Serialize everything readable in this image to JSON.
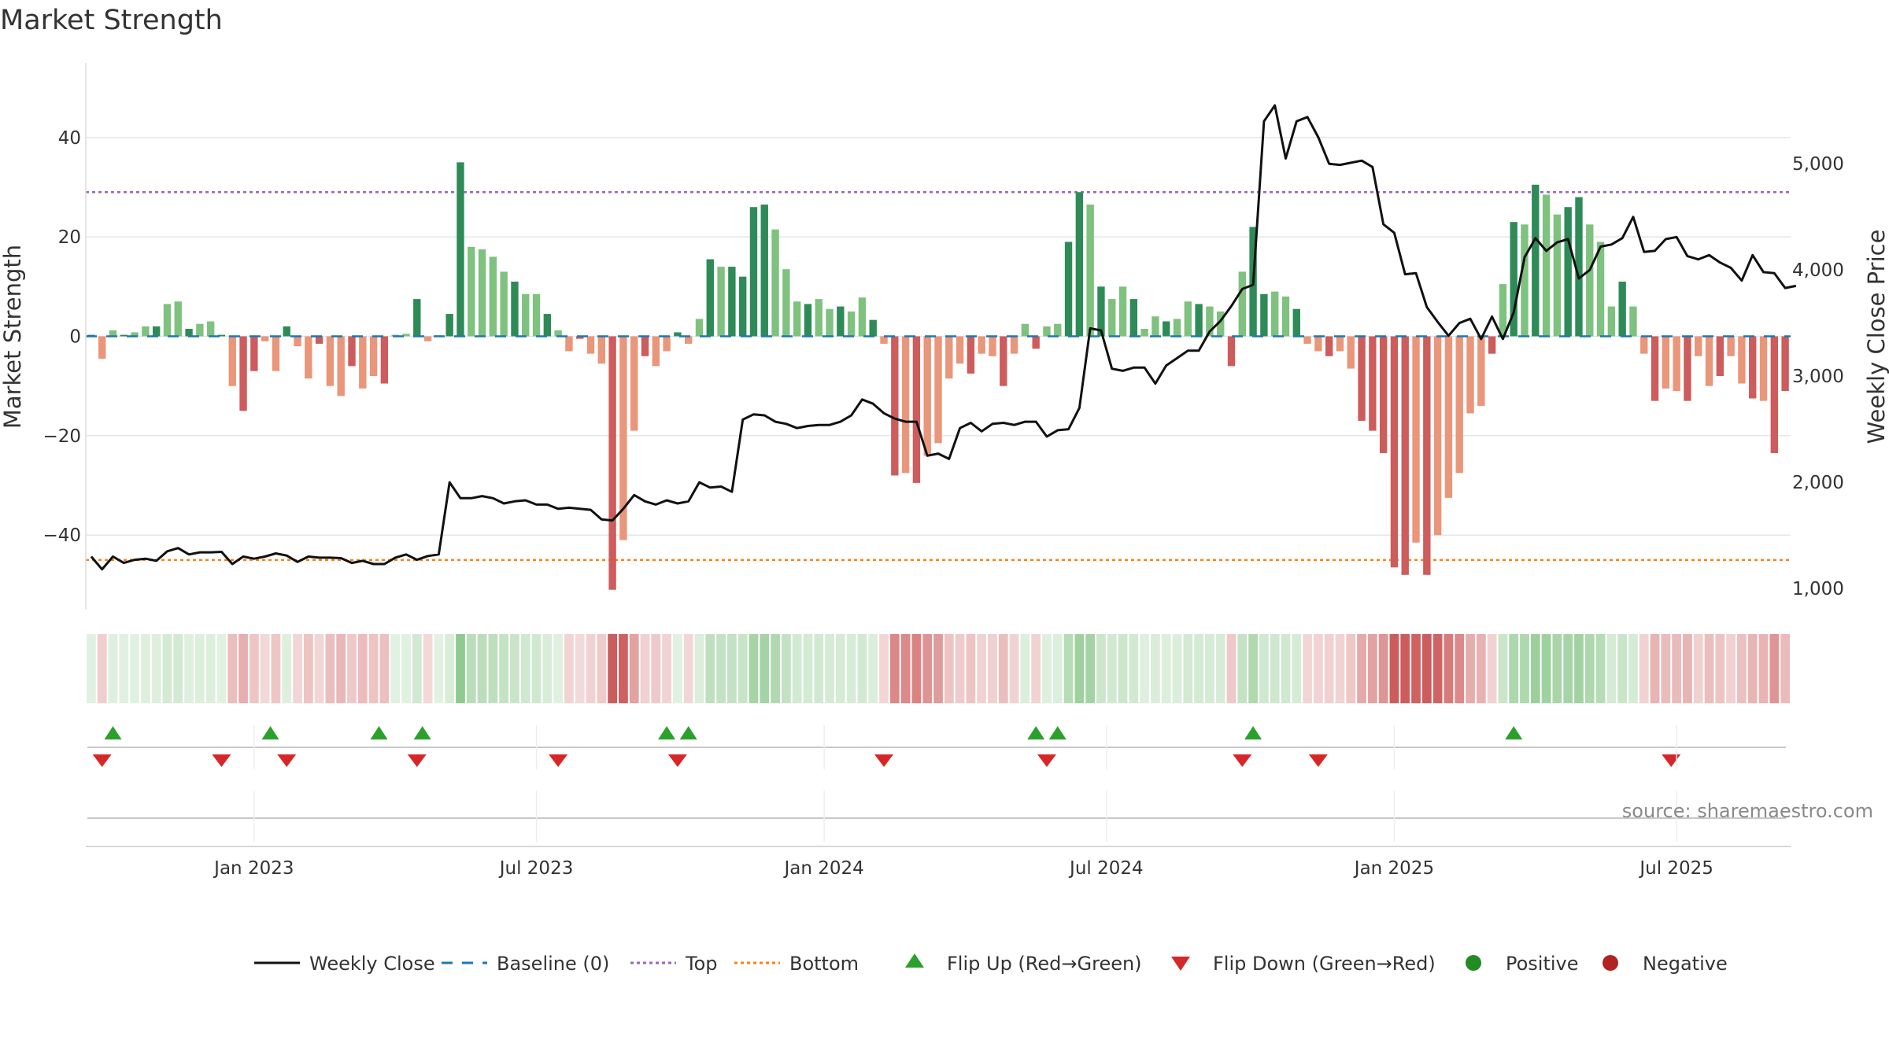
{
  "title": "Market Strength",
  "source": "source: sharemaestro.com",
  "colors": {
    "pos_dark": "#2e8b57",
    "pos_light": "#7fc17f",
    "neg_dark": "#cd5c5c",
    "neg_light": "#e9967a",
    "line": "#111111",
    "baseline": "#1f77b4",
    "top": "#9467bd",
    "bottom": "#ff7f0e",
    "flip_up": "#2ca02c",
    "flip_down": "#d62728",
    "positive": "#228b22",
    "negative": "#b22222",
    "grid": "#e6e6e6"
  },
  "chart_data": {
    "type": "bar",
    "title": "Market Strength",
    "ylabel": "Market Strength",
    "y2label": "Weekly Close Price",
    "ylim": [
      -55,
      55
    ],
    "y2lim": [
      800,
      5950
    ],
    "yticks": [
      40,
      20,
      0,
      -20,
      -40
    ],
    "y2ticks": [
      {
        "v": 5000,
        "label": "5,000"
      },
      {
        "v": 4000,
        "label": "4,000"
      },
      {
        "v": 3000,
        "label": "3,000"
      },
      {
        "v": 2000,
        "label": "2,000"
      },
      {
        "v": 1000,
        "label": "1,000"
      }
    ],
    "xticks": [
      {
        "label": "Jan 2023",
        "week": 15
      },
      {
        "label": "Jul 2023",
        "week": 41
      },
      {
        "label": "Jan 2024",
        "week": 67.5
      },
      {
        "label": "Jul 2024",
        "week": 93.5
      },
      {
        "label": "Jan 2025",
        "week": 120
      },
      {
        "label": "Jul 2025",
        "week": 146
      }
    ],
    "grid": true,
    "legend_position": "bottom",
    "top_level": 29,
    "bottom_level": -45,
    "strength": [
      0.3,
      -4.5,
      1.2,
      0.3,
      0.8,
      2,
      2,
      6.5,
      7,
      1.5,
      2.5,
      3,
      0.3,
      -10,
      -15,
      -7,
      -1,
      -7,
      2,
      -2,
      -8.5,
      -1.5,
      -10,
      -12,
      -6,
      -10.5,
      -8,
      -9.5,
      0.3,
      0.5,
      7.5,
      -1,
      0.2,
      4.5,
      35,
      18,
      17.5,
      16,
      13,
      11,
      8.5,
      8.5,
      4.5,
      1.2,
      -3,
      -0.5,
      -3.5,
      -5.5,
      -51,
      -41,
      -19,
      -4,
      -6,
      -3,
      0.8,
      -1.5,
      3.5,
      15.5,
      14,
      14,
      12,
      26,
      26.5,
      21.5,
      13.5,
      7,
      6.5,
      7.5,
      5.5,
      6,
      5,
      7.8,
      3.3,
      -1.5,
      -28,
      -27.5,
      -29.5,
      -24,
      -21.5,
      -8.5,
      -5.5,
      -7.5,
      -3.5,
      -4,
      -10,
      -3.5,
      2.5,
      -2.5,
      2,
      2.5,
      19,
      29,
      26.5,
      10,
      7.5,
      10,
      7.5,
      1.5,
      4,
      3,
      3.5,
      7,
      6.5,
      6,
      5,
      -6,
      13,
      22,
      8.5,
      9,
      8,
      5.5,
      -1.5,
      -3,
      -4,
      -3,
      -6.5,
      -17,
      -19,
      -23.5,
      -46.5,
      -48,
      -41.5,
      -48,
      -40,
      -32.5,
      -27.5,
      -15.5,
      -14,
      -3.5,
      10.5,
      23,
      22.5,
      30.5,
      28.5,
      24.5,
      26,
      28,
      22.5,
      19,
      6,
      11,
      6,
      -3.5,
      -13,
      -10.5,
      -11,
      -13,
      -4,
      -10,
      -8,
      -4,
      -9.5,
      -12.5,
      -13,
      -23.5,
      -11
    ],
    "close": [
      1300,
      1180,
      1300,
      1240,
      1270,
      1280,
      1260,
      1350,
      1380,
      1320,
      1340,
      1340,
      1345,
      1230,
      1300,
      1280,
      1300,
      1330,
      1310,
      1250,
      1300,
      1290,
      1290,
      1285,
      1240,
      1260,
      1230,
      1230,
      1290,
      1320,
      1270,
      1305,
      1320,
      2000,
      1850,
      1850,
      1870,
      1850,
      1800,
      1820,
      1830,
      1790,
      1790,
      1750,
      1760,
      1750,
      1740,
      1650,
      1640,
      1750,
      1880,
      1820,
      1790,
      1830,
      1800,
      1820,
      2000,
      1950,
      1960,
      1910,
      2590,
      2640,
      2630,
      2570,
      2550,
      2510,
      2530,
      2540,
      2540,
      2570,
      2630,
      2780,
      2740,
      2650,
      2600,
      2570,
      2570,
      2250,
      2270,
      2220,
      2510,
      2560,
      2480,
      2550,
      2560,
      2540,
      2570,
      2570,
      2430,
      2490,
      2500,
      2700,
      3450,
      3430,
      3070,
      3050,
      3080,
      3080,
      2930,
      3100,
      3170,
      3240,
      3240,
      3420,
      3520,
      3660,
      3820,
      3860,
      5400,
      5550,
      5050,
      5400,
      5440,
      5250,
      5000,
      4990,
      5010,
      5030,
      4970,
      4430,
      4350,
      3960,
      3970,
      3650,
      3510,
      3380,
      3500,
      3540,
      3350,
      3560,
      3350,
      3600,
      4120,
      4300,
      4180,
      4260,
      4290,
      3920,
      4000,
      4220,
      4240,
      4300,
      4500,
      4170,
      4180,
      4290,
      4310,
      4130,
      4100,
      4140,
      4070,
      4020,
      3900,
      4140,
      3980,
      3970,
      3830,
      3850
    ],
    "flip_up_weeks": [
      2,
      16.5,
      26.5,
      30.5,
      53,
      55,
      87,
      89,
      107,
      131
    ],
    "flip_down_weeks": [
      1,
      12,
      18,
      30,
      43,
      54,
      73,
      88,
      106,
      113,
      145.5
    ],
    "regime_strip": "green/red shading bar per week beneath the main chart"
  },
  "legend": [
    {
      "label": "Weekly Close",
      "icon": "solid-line-icon"
    },
    {
      "label": "Baseline (0)",
      "icon": "dashed-line-icon"
    },
    {
      "label": "Top",
      "icon": "dotted-line-icon"
    },
    {
      "label": "Bottom",
      "icon": "dotted-line-icon"
    },
    {
      "label": "Flip Up (Red→Green)",
      "icon": "triangle-up-icon"
    },
    {
      "label": "Flip Down (Green→Red)",
      "icon": "triangle-down-icon"
    },
    {
      "label": "Positive",
      "icon": "circle-icon"
    },
    {
      "label": "Negative",
      "icon": "circle-icon"
    }
  ]
}
